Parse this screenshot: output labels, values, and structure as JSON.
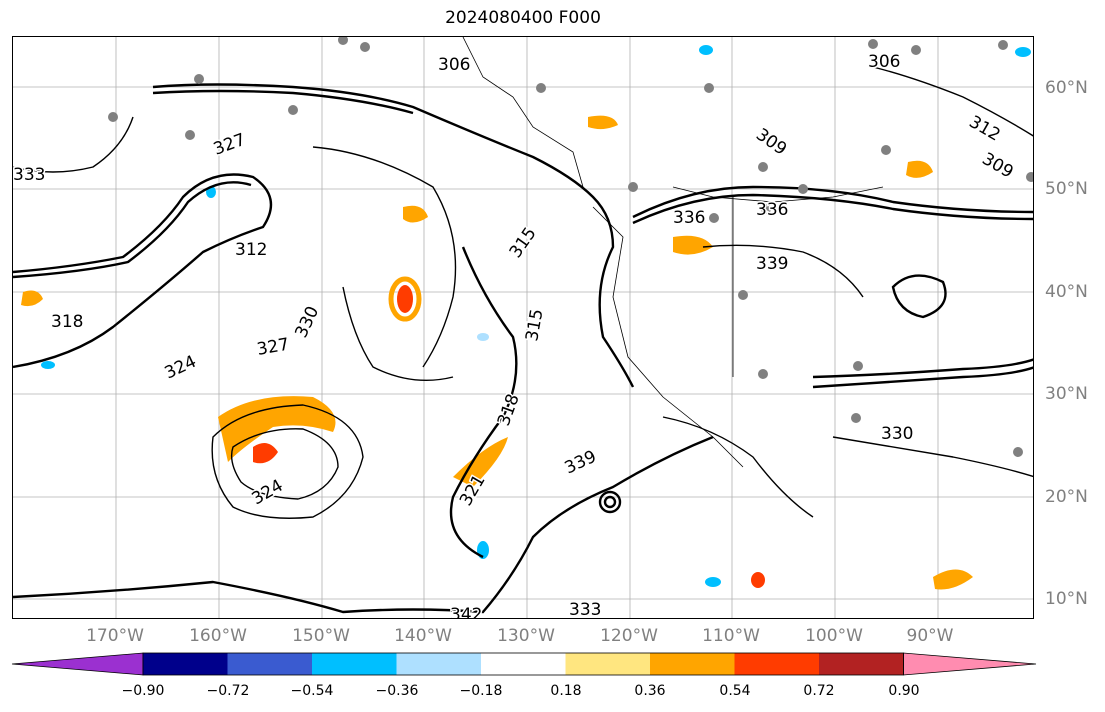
{
  "title": "2024080400 F000",
  "lat_labels": [
    "60°N",
    "50°N",
    "40°N",
    "30°N",
    "20°N",
    "10°N"
  ],
  "lon_labels": [
    "170°W",
    "160°W",
    "150°W",
    "140°W",
    "130°W",
    "120°W",
    "110°W",
    "100°W",
    "90°W"
  ],
  "contour_labels": [
    "306",
    "312",
    "318",
    "324",
    "330",
    "336",
    "339",
    "315",
    "321",
    "327",
    "333",
    "309",
    "342"
  ],
  "colorbar": {
    "ticks": [
      "−0.90",
      "−0.72",
      "−0.54",
      "−0.36",
      "−0.18",
      "0.18",
      "0.36",
      "0.54",
      "0.72",
      "0.90"
    ],
    "colors": [
      "#9b30d0",
      "#00008b",
      "#3a5bd0",
      "#00bfff",
      "#aee0ff",
      "#ffffff",
      "#ffe680",
      "#ffa500",
      "#ff3c00",
      "#b22222",
      "#ff8cb0"
    ]
  }
}
